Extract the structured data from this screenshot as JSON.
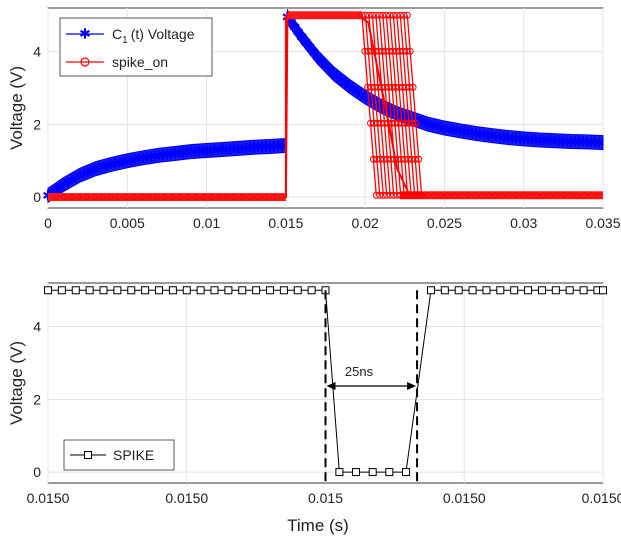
{
  "chart_data": [
    {
      "type": "line",
      "xlim": [
        0,
        0.035
      ],
      "ylim": [
        -0.3,
        5.2
      ],
      "x_ticks": [
        "0",
        "0.005",
        "0.01",
        "0.015",
        "0.02",
        "0.025",
        "0.03",
        "0.035"
      ],
      "y_ticks": [
        "0",
        "2",
        "4"
      ],
      "x_tick_values": [
        0,
        0.005,
        0.01,
        0.015,
        0.02,
        0.025,
        0.03,
        0.035
      ],
      "y_tick_values": [
        0,
        2,
        4
      ],
      "xlabel": "",
      "ylabel": "Voltage (V)",
      "grid": true,
      "legend": "top-left",
      "series": [
        {
          "name": "C",
          "name_sub": "1",
          "name_suffix": "(t) Voltage",
          "color": "#0000ff",
          "marker": "asterisk",
          "x": [
            0,
            0.001,
            0.002,
            0.003,
            0.004,
            0.005,
            0.006,
            0.007,
            0.008,
            0.009,
            0.01,
            0.011,
            0.012,
            0.013,
            0.014,
            0.015,
            0.0151,
            0.016,
            0.017,
            0.018,
            0.019,
            0.02,
            0.021,
            0.022,
            0.023,
            0.024,
            0.025,
            0.026,
            0.027,
            0.028,
            0.029,
            0.03,
            0.031,
            0.032,
            0.033,
            0.034,
            0.035
          ],
          "y": [
            0.05,
            0.35,
            0.6,
            0.78,
            0.9,
            1.0,
            1.08,
            1.15,
            1.2,
            1.25,
            1.28,
            1.31,
            1.34,
            1.37,
            1.39,
            1.42,
            4.95,
            4.4,
            3.85,
            3.4,
            3.05,
            2.75,
            2.5,
            2.3,
            2.15,
            2.0,
            1.9,
            1.82,
            1.75,
            1.69,
            1.64,
            1.6,
            1.57,
            1.55,
            1.53,
            1.52,
            1.5
          ]
        },
        {
          "name": "spike_on",
          "color": "#ff0000",
          "marker": "circle",
          "x": [
            0,
            0.015,
            0.0151,
            0.0195,
            0.0202,
            0.0208,
            0.0215,
            0.022,
            0.0228,
            0.035
          ],
          "y": [
            0,
            0,
            5,
            5,
            4.8,
            3.5,
            2.0,
            0.8,
            0.05,
            0.05
          ]
        }
      ]
    },
    {
      "type": "line",
      "xlim": [
        0,
        1
      ],
      "ylim": [
        -0.3,
        5.2
      ],
      "x_ticks": [
        "0.0150",
        "0.0150",
        "0.015",
        "0.0150",
        "0.0150"
      ],
      "y_ticks": [
        "0",
        "2",
        "4"
      ],
      "y_tick_values": [
        0,
        2,
        4
      ],
      "xlabel": "Time (s)",
      "ylabel": "Voltage (V)",
      "grid": true,
      "legend": "bottom-left",
      "annotation": "25ns",
      "series": [
        {
          "name": "SPIKE",
          "color": "#000000",
          "marker": "square",
          "x": [
            0,
            0.025,
            0.05,
            0.075,
            0.1,
            0.125,
            0.15,
            0.175,
            0.2,
            0.225,
            0.25,
            0.275,
            0.3,
            0.325,
            0.35,
            0.375,
            0.4,
            0.425,
            0.45,
            0.475,
            0.5,
            0.525,
            0.55,
            0.575,
            0.6,
            0.625,
            0.65,
            0.675,
            0.7,
            0.725,
            0.75,
            0.775,
            0.8,
            0.825,
            0.85,
            0.875,
            0.9,
            0.925,
            0.95,
            0.975,
            1.0
          ],
          "y": [
            5,
            5,
            5,
            5,
            5,
            5,
            5,
            5,
            5,
            5,
            5,
            5,
            5,
            5,
            5,
            5,
            5,
            5,
            5,
            5,
            5,
            0,
            0,
            0,
            0,
            0,
            5,
            5,
            5,
            5,
            5,
            5,
            5,
            5,
            5,
            5,
            5,
            5,
            5,
            5,
            5
          ]
        }
      ],
      "markers_x": [
        0,
        0.025,
        0.05,
        0.075,
        0.1,
        0.125,
        0.15,
        0.175,
        0.2,
        0.225,
        0.25,
        0.275,
        0.3,
        0.325,
        0.35,
        0.375,
        0.4,
        0.425,
        0.45,
        0.475,
        0.5,
        0.525,
        0.555,
        0.585,
        0.615,
        0.645,
        0.69,
        0.715,
        0.74,
        0.765,
        0.79,
        0.815,
        0.84,
        0.865,
        0.89,
        0.915,
        0.94,
        0.965,
        0.99,
        1.0
      ],
      "markers_y": [
        5,
        5,
        5,
        5,
        5,
        5,
        5,
        5,
        5,
        5,
        5,
        5,
        5,
        5,
        5,
        5,
        5,
        5,
        5,
        5,
        5,
        0,
        0,
        0,
        0,
        0,
        5,
        5,
        5,
        5,
        5,
        5,
        5,
        5,
        5,
        5,
        5,
        5,
        5,
        5
      ],
      "dashed_x": [
        0.5,
        0.665
      ]
    }
  ]
}
